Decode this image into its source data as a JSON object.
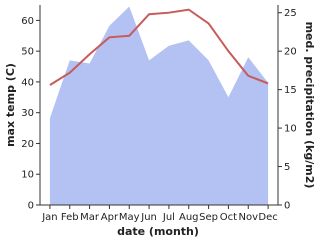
{
  "chart_data": {
    "type": "line-area",
    "x_label": "date (month)",
    "y_label": "max temp (C)",
    "y2_label": "med. precipitation (kg/m2)",
    "categories": [
      "Jan",
      "Feb",
      "Mar",
      "Apr",
      "May",
      "Jun",
      "Jul",
      "Aug",
      "Sep",
      "Oct",
      "Nov",
      "Dec"
    ],
    "ylim": [
      0,
      65
    ],
    "yticks": [
      0,
      10,
      20,
      30,
      40,
      50,
      60
    ],
    "y2lim": [
      0,
      26
    ],
    "y2ticks": [
      0,
      5,
      10,
      15,
      20,
      25
    ],
    "series": [
      {
        "name": "med. precipitation",
        "color": "#b3c2f2",
        "axis": "y2",
        "kind": "area",
        "values": [
          11.3,
          18.8,
          18.4,
          23.3,
          25.8,
          18.8,
          20.7,
          21.4,
          18.8,
          14,
          19.2,
          15.9
        ]
      },
      {
        "name": "max temp",
        "color": "#c85a5a",
        "axis": "y",
        "kind": "line",
        "values": [
          39,
          43,
          49,
          54.5,
          55,
          62,
          62.5,
          63.5,
          59,
          50,
          42,
          39.5
        ]
      }
    ]
  }
}
